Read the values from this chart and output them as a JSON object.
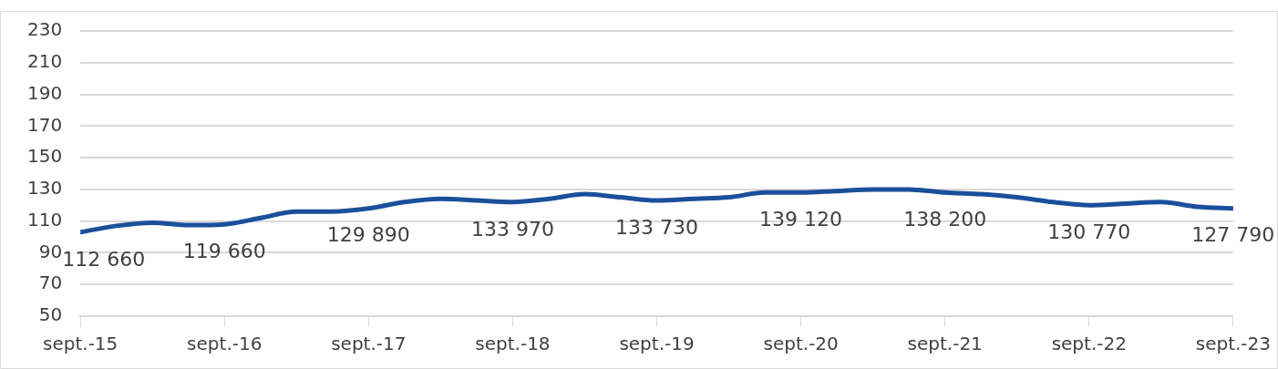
{
  "chart_data": {
    "type": "line",
    "x": [
      "2015-09",
      "2015-12",
      "2016-03",
      "2016-06",
      "2016-09",
      "2016-12",
      "2017-03",
      "2017-06",
      "2017-09",
      "2017-12",
      "2018-03",
      "2018-06",
      "2018-09",
      "2018-12",
      "2019-03",
      "2019-06",
      "2019-09",
      "2019-12",
      "2020-03",
      "2020-06",
      "2020-09",
      "2020-12",
      "2021-03",
      "2021-06",
      "2021-09",
      "2021-12",
      "2022-03",
      "2022-06",
      "2022-09",
      "2022-12",
      "2023-03",
      "2023-06",
      "2023-09"
    ],
    "series": [
      {
        "color": "#1b4f9c",
        "values": [
          103,
          107,
          109,
          107.5,
          108,
          112,
          116,
          116,
          118,
          122,
          124,
          123,
          122,
          124,
          127,
          125,
          123,
          124,
          125,
          128,
          128,
          129,
          130,
          130,
          128,
          127,
          125,
          122,
          120,
          121,
          122,
          119,
          118
        ]
      }
    ],
    "ylim": [
      50,
      230
    ],
    "yticks": [
      50,
      70,
      90,
      110,
      130,
      150,
      170,
      190,
      210,
      230
    ],
    "xlim": [
      "2015-09",
      "2023-09"
    ],
    "xticks": [
      {
        "value": "2015-09",
        "label": "sept.-15"
      },
      {
        "value": "2016-09",
        "label": "sept.-16"
      },
      {
        "value": "2017-09",
        "label": "sept.-17"
      },
      {
        "value": "2018-09",
        "label": "sept.-18"
      },
      {
        "value": "2019-09",
        "label": "sept.-19"
      },
      {
        "value": "2020-09",
        "label": "sept.-20"
      },
      {
        "value": "2021-09",
        "label": "sept.-21"
      },
      {
        "value": "2022-09",
        "label": "sept.-22"
      },
      {
        "value": "2023-09",
        "label": "sept.-23"
      }
    ],
    "grid": "y",
    "legend": false,
    "line_style": "solid",
    "marker": "none",
    "annotations": [
      {
        "text": "112 660",
        "x": "2015-09",
        "y": 103
      },
      {
        "text": "119 660",
        "x": "2016-09",
        "y": 108
      },
      {
        "text": "129 890",
        "x": "2017-09",
        "y": 118
      },
      {
        "text": "133 970",
        "x": "2018-09",
        "y": 122
      },
      {
        "text": "133 730",
        "x": "2019-09",
        "y": 123
      },
      {
        "text": "139 120",
        "x": "2020-09",
        "y": 128
      },
      {
        "text": "138 200",
        "x": "2021-09",
        "y": 128
      },
      {
        "text": "130 770",
        "x": "2022-09",
        "y": 120
      },
      {
        "text": "127 790",
        "x": "2023-09",
        "y": 118
      }
    ]
  }
}
